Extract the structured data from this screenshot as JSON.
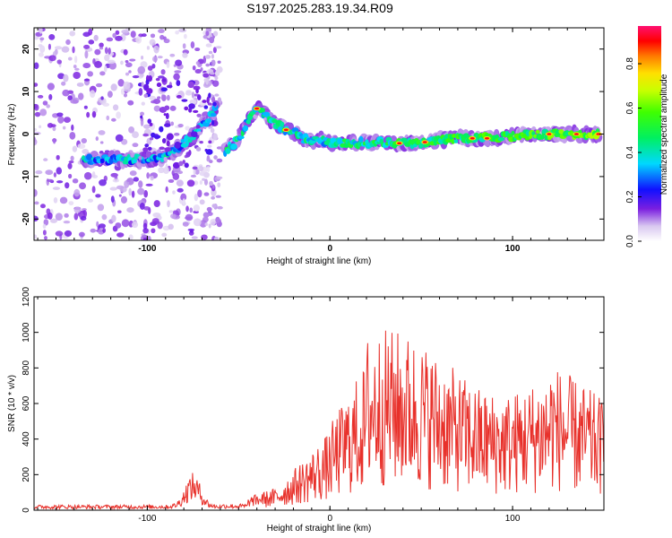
{
  "title": "S197.2025.283.19.34.R09",
  "chart_data": [
    {
      "type": "heatmap",
      "name": "spectrogram",
      "xlabel": "Height of straight line (km)",
      "ylabel": "Frequency (Hz)",
      "xlim": [
        -162,
        150
      ],
      "ylim": [
        -25,
        25
      ],
      "xticks": [
        -100,
        0,
        100
      ],
      "yticks": [
        -20,
        -10,
        0,
        10,
        20
      ],
      "colorbar": {
        "label": "Normalized spectral amplitude",
        "ticks": [
          0.0,
          0.2,
          0.4,
          0.6,
          0.8
        ],
        "range": [
          0,
          0.97
        ]
      },
      "ridge": {
        "description": "dominant frequency track (Hz) vs height (km)",
        "x": [
          -135,
          -120,
          -110,
          -100,
          -92,
          -85,
          -80,
          -75,
          -72,
          -66,
          -62,
          -58,
          -52,
          -48,
          -44,
          -40,
          -36,
          -32,
          -28,
          -24,
          -20,
          -15,
          -10,
          -5,
          0,
          10,
          20,
          30,
          40,
          50,
          60,
          70,
          80,
          90,
          100,
          110,
          120,
          130,
          140,
          147
        ],
        "y": [
          -6,
          -6,
          -6,
          -6,
          -5.5,
          -4,
          -2,
          -0.5,
          1,
          4,
          6,
          -4,
          -2,
          0,
          4,
          6,
          5,
          3,
          2,
          1,
          0.5,
          -1,
          -1.5,
          -1.5,
          -2,
          -2,
          -2,
          -2,
          -2.2,
          -2,
          -1.5,
          -1,
          -1,
          -1,
          -0.5,
          0,
          0,
          0,
          0,
          0
        ]
      }
    },
    {
      "type": "line",
      "name": "snr",
      "xlabel": "Height of straight line (km)",
      "ylabel": "SNR (10 * v/v)",
      "xlim": [
        -162,
        150
      ],
      "ylim": [
        0,
        1200
      ],
      "xticks": [
        -100,
        0,
        100
      ],
      "yticks": [
        0,
        200,
        400,
        600,
        800,
        1000,
        1200
      ],
      "color": "#e8312b"
    }
  ]
}
